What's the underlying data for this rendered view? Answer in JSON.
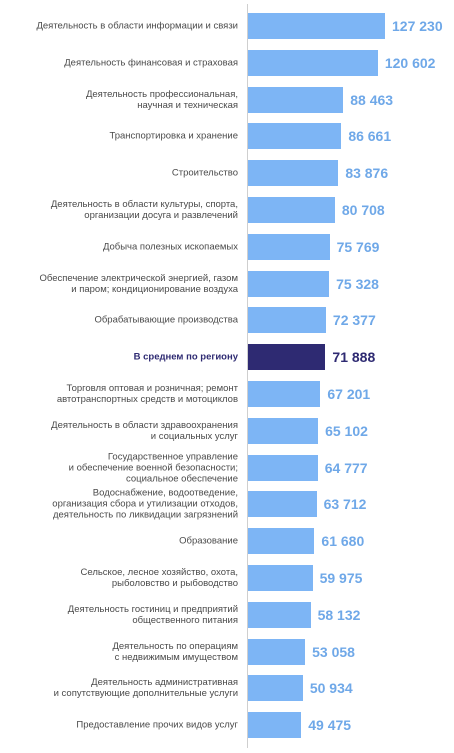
{
  "chart_data": {
    "type": "bar",
    "orientation": "horizontal",
    "xlim": [
      0,
      127230
    ],
    "highlight_color": "#2e2a72",
    "bar_color": "#7db5f5",
    "value_color": "#6fa8e8",
    "categories": [
      "Деятельность в области информации и связи",
      "Деятельность финансовая и страховая",
      "Деятельность профессиональная,\nнаучная и техническая",
      "Транспортировка и хранение",
      "Строительство",
      "Деятельность в области культуры, спорта,\nорганизации досуга и развлечений",
      "Добыча  полезных ископаемых",
      "Обеспечение электрической энергией, газом\nи паром; кондиционирование воздуха",
      "Обрабатывающие производства",
      "В среднем по региону",
      "Торговля оптовая и розничная; ремонт\nавтотранспортных средств и мотоциклов",
      "Деятельность в области здравоохранения\nи социальных услуг",
      "Государственное управление\nи обеспечение военной безопасности;\nсоциальное обеспечение",
      "Водоснабжение, водоотведение,\nорганизация сбора и утилизации отходов,\nдеятельность по ликвидации загрязнений",
      "Образование",
      "Сельское, лесное хозяйство, охота,\nрыболовство и рыбоводство",
      "Деятельность гостиниц и предприятий\nобщественного питания",
      "Деятельность по операциям\nс недвижимым имуществом",
      "Деятельность административная\nи сопутствующие дополнительные услуги",
      "Предоставление прочих видов услуг"
    ],
    "values": [
      127230,
      120602,
      88463,
      86661,
      83876,
      80708,
      75769,
      75328,
      72377,
      71888,
      67201,
      65102,
      64777,
      63712,
      61680,
      59975,
      58132,
      53058,
      50934,
      49475
    ],
    "value_labels": [
      "127 230",
      "120 602",
      "88 463",
      "86 661",
      "83 876",
      "80 708",
      "75 769",
      "75 328",
      "72 377",
      "71 888",
      "67 201",
      "65 102",
      "64 777",
      "63 712",
      "61 680",
      "59 975",
      "58 132",
      "53 058",
      "50 934",
      "49 475"
    ],
    "highlight_index": 9
  }
}
